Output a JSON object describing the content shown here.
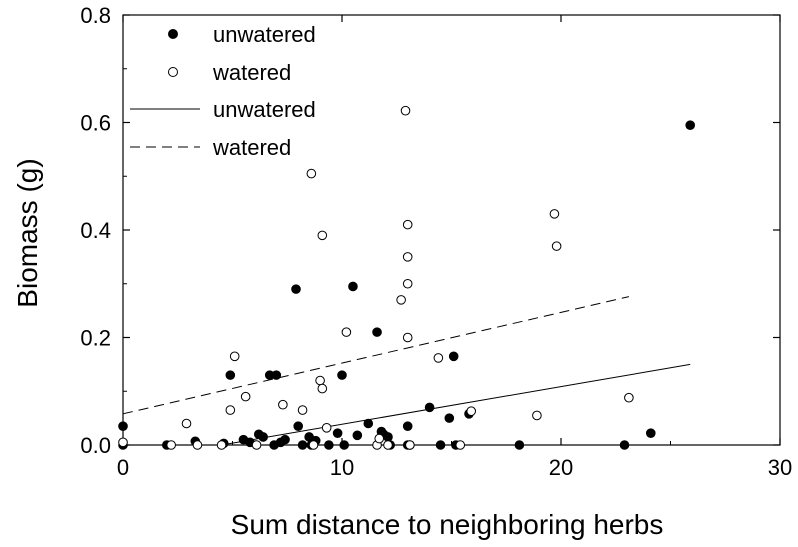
{
  "chart_data": {
    "type": "scatter",
    "xlabel": "Sum distance to neighboring herbs",
    "ylabel": "Biomass (g)",
    "xlim": [
      0,
      30
    ],
    "ylim": [
      0,
      0.8
    ],
    "xticks": [
      "0",
      "10",
      "20",
      "30"
    ],
    "yticks": [
      "0.0",
      "0.2",
      "0.4",
      "0.6",
      "0.8"
    ],
    "grid": false,
    "legend_position": "top-left",
    "legend": {
      "unwatered_points": "unwatered",
      "watered_points": "watered",
      "unwatered_line": "unwatered",
      "watered_line": "watered"
    },
    "series": [
      {
        "name": "unwatered",
        "kind": "points",
        "marker": "filled-circle",
        "x": [
          0.0,
          0.0,
          2.0,
          3.3,
          4.6,
          4.9,
          5.5,
          5.8,
          6.2,
          6.4,
          6.7,
          6.9,
          7.0,
          7.2,
          7.4,
          7.9,
          8.0,
          8.2,
          8.5,
          8.6,
          8.8,
          9.4,
          9.8,
          10.0,
          10.1,
          10.5,
          10.7,
          11.2,
          11.6,
          11.8,
          11.9,
          12.1,
          12.2,
          13.0,
          13.0,
          13.1,
          14.0,
          14.5,
          14.9,
          15.1,
          15.2,
          15.8,
          18.1,
          22.9,
          24.1,
          25.9
        ],
        "y": [
          0.035,
          0.0,
          0.0,
          0.007,
          0.003,
          0.13,
          0.01,
          0.005,
          0.02,
          0.015,
          0.13,
          0.0,
          0.13,
          0.005,
          0.01,
          0.29,
          0.035,
          0.0,
          0.015,
          0.0,
          0.008,
          0.0,
          0.022,
          0.13,
          0.0,
          0.295,
          0.018,
          0.04,
          0.21,
          0.025,
          0.02,
          0.015,
          0.0,
          0.0,
          0.035,
          0.0,
          0.07,
          0.0,
          0.05,
          0.165,
          0.0,
          0.058,
          0.0,
          0.0,
          0.022,
          0.595
        ]
      },
      {
        "name": "watered",
        "kind": "points",
        "marker": "open-circle",
        "x": [
          0.0,
          2.2,
          2.9,
          3.4,
          4.5,
          4.9,
          5.1,
          5.6,
          6.1,
          7.3,
          8.2,
          8.6,
          8.7,
          9.0,
          9.1,
          9.1,
          9.3,
          10.2,
          11.6,
          11.7,
          12.1,
          12.7,
          12.9,
          13.0,
          13.0,
          13.0,
          13.0,
          13.1,
          14.4,
          15.4,
          15.9,
          18.9,
          19.7,
          19.8,
          23.1
        ],
        "y": [
          0.005,
          0.0,
          0.04,
          0.0,
          0.0,
          0.065,
          0.165,
          0.09,
          0.0,
          0.075,
          0.065,
          0.505,
          0.0,
          0.12,
          0.105,
          0.39,
          0.032,
          0.21,
          0.0,
          0.012,
          0.0,
          0.27,
          0.622,
          0.41,
          0.35,
          0.3,
          0.2,
          0.0,
          0.162,
          0.0,
          0.063,
          0.055,
          0.43,
          0.37,
          0.088
        ]
      },
      {
        "name": "unwatered",
        "kind": "line",
        "style": "solid",
        "x": [
          4.5,
          25.9
        ],
        "y": [
          0.0,
          0.15
        ]
      },
      {
        "name": "watered",
        "kind": "line",
        "style": "dashed",
        "x": [
          0.0,
          23.1
        ],
        "y": [
          0.058,
          0.276
        ]
      }
    ]
  }
}
